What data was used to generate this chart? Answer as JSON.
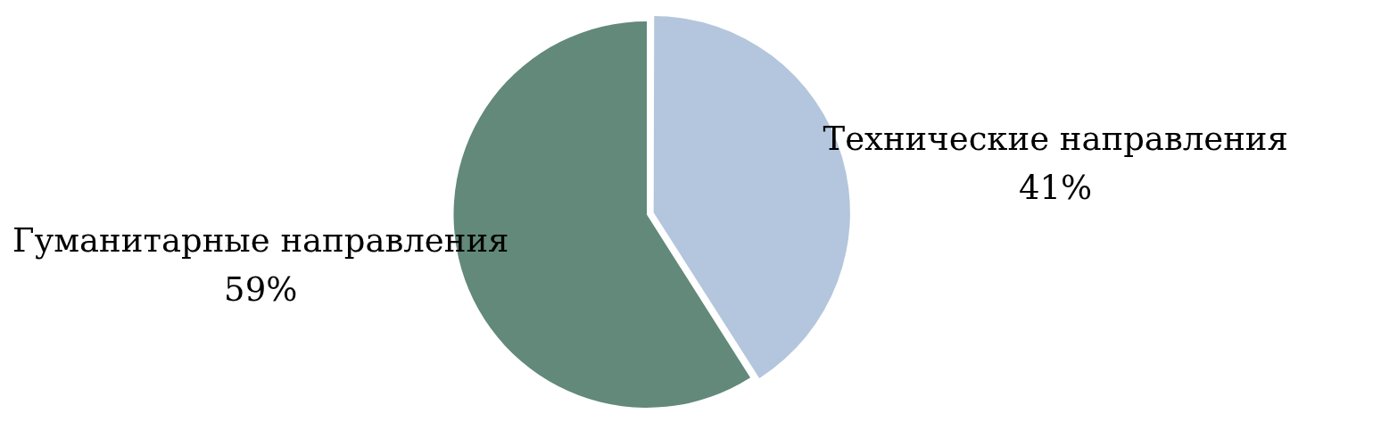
{
  "chart_data": {
    "type": "pie",
    "categories": [
      "Технические направления",
      "Гуманитарные направления"
    ],
    "values": [
      41,
      59
    ],
    "value_labels": [
      "41%",
      "59%"
    ],
    "colors": [
      "#b4c6dd",
      "#62897a"
    ],
    "legend": false
  }
}
